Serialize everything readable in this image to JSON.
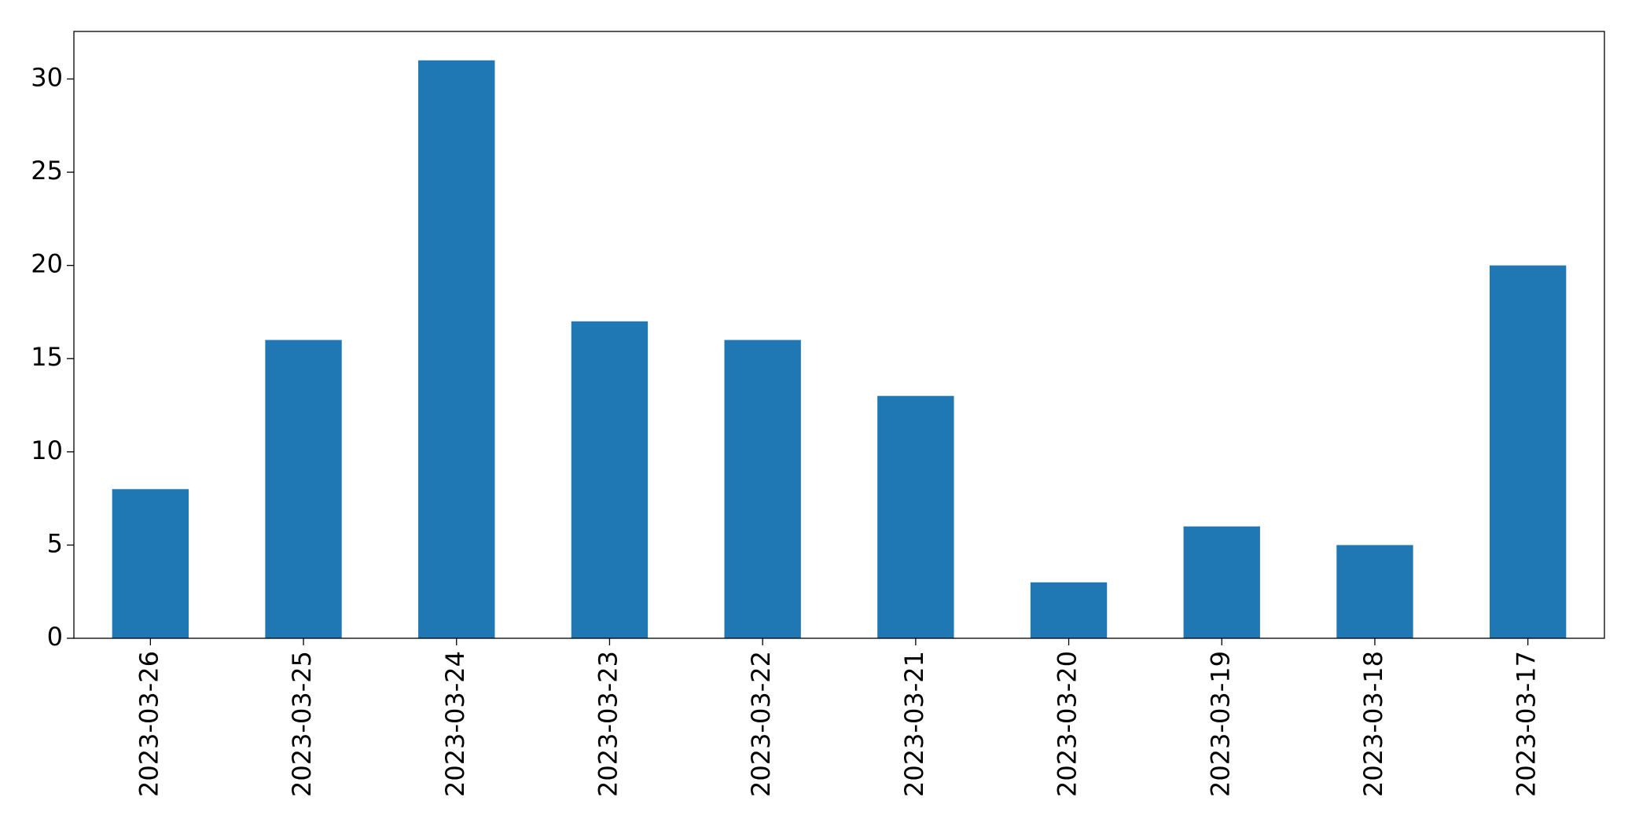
{
  "chart_data": {
    "type": "bar",
    "categories": [
      "2023-03-26",
      "2023-03-25",
      "2023-03-24",
      "2023-03-23",
      "2023-03-22",
      "2023-03-21",
      "2023-03-20",
      "2023-03-19",
      "2023-03-18",
      "2023-03-17"
    ],
    "values": [
      8,
      16,
      31,
      17,
      16,
      13,
      3,
      6,
      5,
      20
    ],
    "color": "#1f77b4",
    "ylim": [
      0,
      32.55
    ],
    "yticks": [
      0,
      5,
      10,
      15,
      20,
      25,
      30
    ],
    "grid": false
  }
}
